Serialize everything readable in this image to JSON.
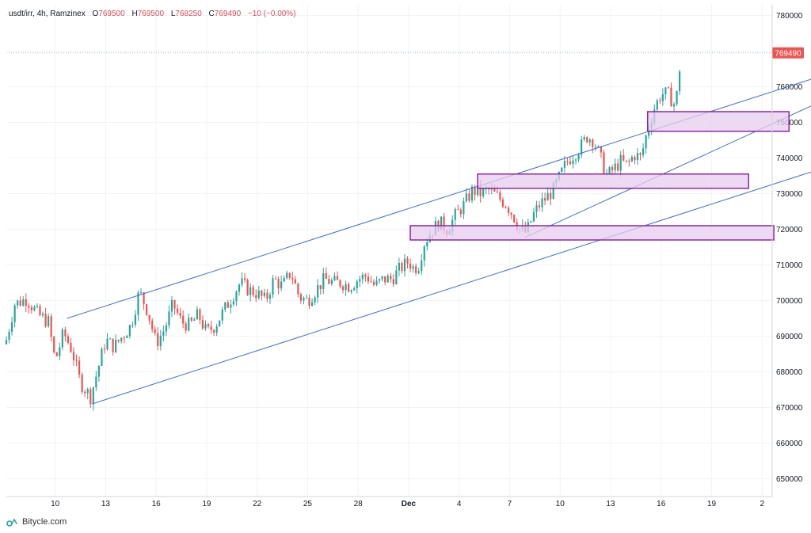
{
  "legend": {
    "symbol": "usdt/irr, 4h, Ramzinex",
    "open_label": "O",
    "open": "769500",
    "high_label": "H",
    "high": "769500",
    "low_label": "L",
    "low": "768250",
    "close_label": "C",
    "close": "769490",
    "change": "−10 (−0.00%)"
  },
  "price_tag": "769490",
  "brand": "Bitycle.com",
  "colors": {
    "up": "#26a69a",
    "down": "#ef5350",
    "channel": "#3f6ed8",
    "zone_fill": "#e7cdee",
    "zone_border": "#8e24aa",
    "tag": "#ef5350"
  },
  "chart_data": {
    "type": "candlestick",
    "title": "usdt/irr, 4h, Ramzinex",
    "y_ticks": [
      "780000",
      "770000",
      "760000",
      "750000",
      "740000",
      "730000",
      "720000",
      "710000",
      "700000",
      "690000",
      "680000",
      "670000",
      "660000",
      "650000"
    ],
    "ylim": [
      645000,
      783000
    ],
    "x_ticks": [
      "10",
      "13",
      "16",
      "19",
      "22",
      "25",
      "28",
      "Dec",
      "4",
      "7",
      "10",
      "13",
      "16",
      "19",
      "2"
    ],
    "x_tick_positions_day": [
      10,
      13,
      16,
      19,
      22,
      25,
      28,
      31,
      34,
      37,
      40,
      43,
      46,
      49,
      52
    ],
    "xlim_day": [
      7.1,
      52.6
    ],
    "last_price": 769490,
    "anchors_day_close": [
      [
        7.1,
        689000
      ],
      [
        7.6,
        699000
      ],
      [
        8.3,
        700500
      ],
      [
        9.0,
        696000
      ],
      [
        9.6,
        694000
      ],
      [
        10.0,
        683000
      ],
      [
        10.5,
        691000
      ],
      [
        11.0,
        686000
      ],
      [
        11.5,
        677000
      ],
      [
        12.1,
        673000
      ],
      [
        12.5,
        680000
      ],
      [
        13.0,
        689000
      ],
      [
        13.5,
        687000
      ],
      [
        14.0,
        690000
      ],
      [
        14.5,
        693000
      ],
      [
        15.0,
        702500
      ],
      [
        15.5,
        697000
      ],
      [
        16.0,
        688000
      ],
      [
        16.5,
        692000
      ],
      [
        17.0,
        699000
      ],
      [
        17.5,
        694000
      ],
      [
        18.0,
        693000
      ],
      [
        18.5,
        696000
      ],
      [
        19.0,
        691000
      ],
      [
        19.5,
        693000
      ],
      [
        20.0,
        697000
      ],
      [
        20.5,
        701000
      ],
      [
        21.0,
        705000
      ],
      [
        21.5,
        703000
      ],
      [
        22.0,
        702000
      ],
      [
        22.5,
        700000
      ],
      [
        23.0,
        706000
      ],
      [
        23.5,
        704000
      ],
      [
        24.0,
        708000
      ],
      [
        24.5,
        701000
      ],
      [
        25.0,
        700000
      ],
      [
        25.5,
        703000
      ],
      [
        26.0,
        706000
      ],
      [
        26.5,
        705000
      ],
      [
        27.0,
        705000
      ],
      [
        27.5,
        704000
      ],
      [
        28.0,
        706000
      ],
      [
        28.5,
        707000
      ],
      [
        29.0,
        704000
      ],
      [
        29.5,
        706000
      ],
      [
        30.0,
        706000
      ],
      [
        30.5,
        709000
      ],
      [
        31.0,
        711000
      ],
      [
        31.3,
        709000
      ],
      [
        31.6,
        710000
      ],
      [
        31.9,
        716000
      ],
      [
        32.3,
        719000
      ],
      [
        32.8,
        722000
      ],
      [
        33.3,
        720000
      ],
      [
        33.8,
        724000
      ],
      [
        34.3,
        727000
      ],
      [
        34.8,
        731000
      ],
      [
        35.3,
        730000
      ],
      [
        35.8,
        731000
      ],
      [
        36.3,
        729000
      ],
      [
        36.8,
        727000
      ],
      [
        37.2,
        724000
      ],
      [
        37.6,
        720000
      ],
      [
        38.0,
        719000
      ],
      [
        38.4,
        724000
      ],
      [
        38.8,
        727000
      ],
      [
        39.2,
        729000
      ],
      [
        39.6,
        731000
      ],
      [
        40.0,
        735000
      ],
      [
        40.4,
        739000
      ],
      [
        40.8,
        741000
      ],
      [
        41.2,
        743000
      ],
      [
        41.6,
        746000
      ],
      [
        42.0,
        745000
      ],
      [
        42.4,
        740000
      ],
      [
        42.8,
        735000
      ],
      [
        43.2,
        737000
      ],
      [
        43.6,
        739000
      ],
      [
        44.0,
        738000
      ],
      [
        44.4,
        741000
      ],
      [
        44.8,
        740000
      ],
      [
        45.2,
        748000
      ],
      [
        45.6,
        754000
      ],
      [
        46.0,
        758000
      ],
      [
        46.4,
        758000
      ],
      [
        46.8,
        755000
      ],
      [
        47.0,
        759000
      ],
      [
        47.2,
        769490
      ]
    ],
    "channel_lines": [
      {
        "name": "channel-upper",
        "from": [
          10.7,
          695000
        ],
        "to": [
          55.5,
          763000
        ]
      },
      {
        "name": "channel-lower",
        "from": [
          12.2,
          671000
        ],
        "to": [
          56.5,
          738500
        ]
      },
      {
        "name": "trend-line",
        "from": [
          37.9,
          717700
        ],
        "to": [
          55.1,
          755000
        ]
      }
    ],
    "zones": [
      {
        "name": "zone-1",
        "x0": 45.2,
        "x1": 53.6,
        "y0": 747500,
        "y1": 753000
      },
      {
        "name": "zone-2",
        "x0": 35.1,
        "x1": 51.2,
        "y0": 731500,
        "y1": 735500
      },
      {
        "name": "zone-3",
        "x0": 31.1,
        "x1": 52.7,
        "y0": 717000,
        "y1": 721000
      }
    ]
  }
}
